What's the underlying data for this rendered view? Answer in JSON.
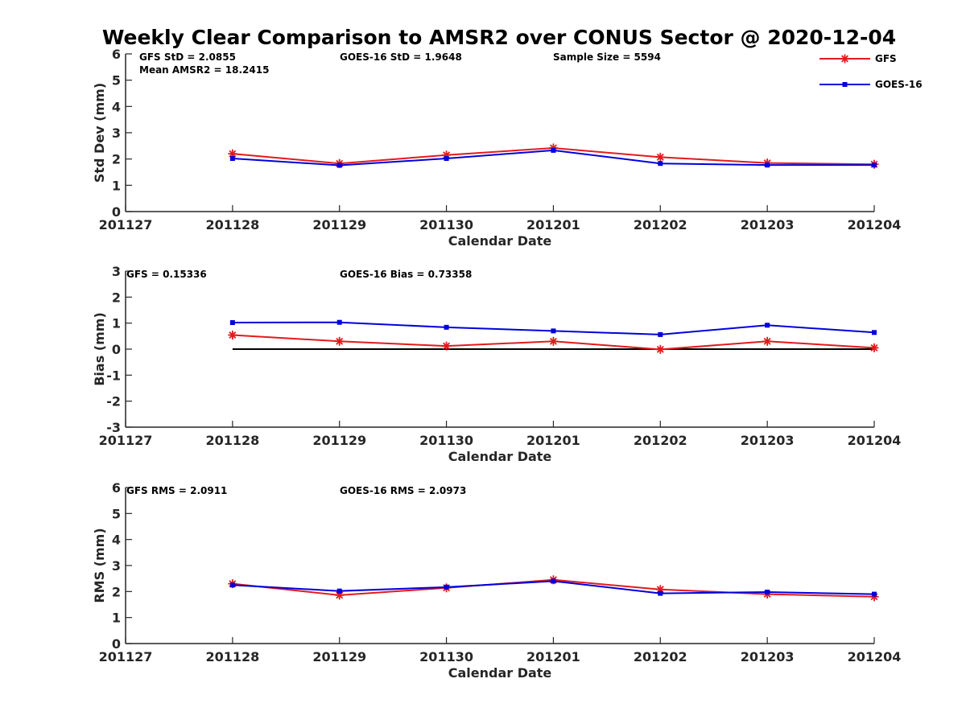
{
  "title": "Weekly Clear Comparison to AMSR2 over CONUS Sector @ 2020-12-04",
  "legend": [
    {
      "name": "GFS",
      "color": "#e31a1c",
      "marker": "asterisk"
    },
    {
      "name": "GOES-16",
      "color": "#0000dd",
      "marker": "square"
    }
  ],
  "chart_data": [
    {
      "type": "line",
      "categories": [
        "201127",
        "201128",
        "201129",
        "201130",
        "201201",
        "201202",
        "201203",
        "201204"
      ],
      "xlabel": "Calendar Date",
      "ylabel": "Std Dev (mm)",
      "ylim": [
        0,
        6
      ],
      "yticks": [
        "0",
        "1",
        "2",
        "3",
        "4",
        "5",
        "6"
      ],
      "annotations": [
        "GFS StD = 2.0855",
        "Mean AMSR2 = 18.2415",
        "GOES-16 StD = 1.9648",
        "Sample Size = 5594"
      ],
      "series": [
        {
          "name": "GFS",
          "values": [
            null,
            2.2,
            1.83,
            2.15,
            2.42,
            2.07,
            1.85,
            1.8
          ]
        },
        {
          "name": "GOES-16",
          "values": [
            null,
            2.02,
            1.76,
            2.02,
            2.33,
            1.83,
            1.77,
            1.77
          ]
        }
      ]
    },
    {
      "type": "line",
      "categories": [
        "201127",
        "201128",
        "201129",
        "201130",
        "201201",
        "201202",
        "201203",
        "201204"
      ],
      "xlabel": "Calendar Date",
      "ylabel": "Bias (mm)",
      "ylim": [
        -3,
        3
      ],
      "yticks": [
        "-3",
        "-2",
        "-1",
        "0",
        "1",
        "2",
        "3"
      ],
      "annotations": [
        "GFS = 0.15336",
        "GOES-16 Bias  = 0.73358"
      ],
      "zero_line": true,
      "series": [
        {
          "name": "GFS",
          "values": [
            null,
            0.54,
            0.3,
            0.12,
            0.3,
            -0.01,
            0.3,
            0.05
          ]
        },
        {
          "name": "GOES-16",
          "values": [
            null,
            1.02,
            1.03,
            0.84,
            0.7,
            0.56,
            0.92,
            0.64
          ]
        }
      ]
    },
    {
      "type": "line",
      "categories": [
        "201127",
        "201128",
        "201129",
        "201130",
        "201201",
        "201202",
        "201203",
        "201204"
      ],
      "xlabel": "Calendar Date",
      "ylabel": "RMS (mm)",
      "ylim": [
        0,
        6
      ],
      "yticks": [
        "0",
        "1",
        "2",
        "3",
        "4",
        "5",
        "6"
      ],
      "annotations": [
        "GFS RMS = 2.0911",
        "GOES-16 RMS = 2.0973"
      ],
      "series": [
        {
          "name": "GFS",
          "values": [
            null,
            2.3,
            1.86,
            2.14,
            2.45,
            2.08,
            1.9,
            1.8
          ]
        },
        {
          "name": "GOES-16",
          "values": [
            null,
            2.25,
            2.02,
            2.17,
            2.4,
            1.93,
            1.98,
            1.9
          ]
        }
      ]
    }
  ]
}
